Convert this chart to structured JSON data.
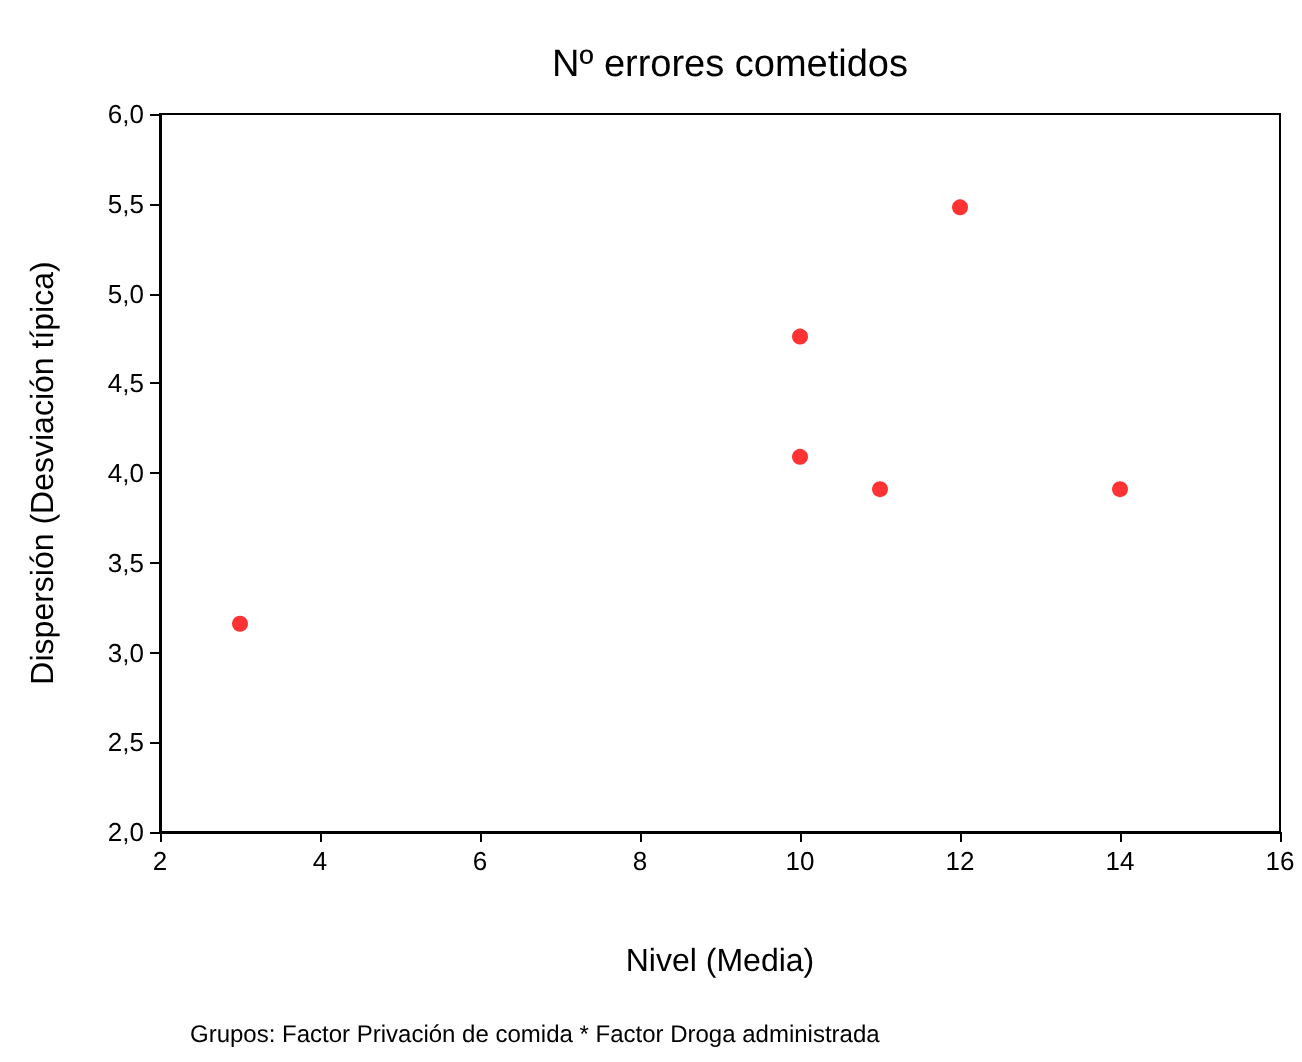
{
  "chart_data": {
    "type": "scatter",
    "title": "Nº errores cometidos",
    "xlabel": "Nivel (Media)",
    "ylabel": "Dispersión (Desviación típica)",
    "annotations": [
      "Grupos: Factor Privación de comida * Factor Droga administrada"
    ],
    "x": [
      3,
      10,
      10,
      11,
      12,
      14
    ],
    "values": [
      3.16,
      4.76,
      4.09,
      3.91,
      5.48,
      3.91
    ],
    "color": "#ff0000",
    "marker": "circle",
    "grid": false,
    "xlim": [
      2,
      16
    ],
    "xticks": [
      2,
      4,
      6,
      8,
      10,
      12,
      14,
      16
    ],
    "ylim": [
      2,
      6
    ],
    "yticks": [
      {
        "value": 2,
        "label": "2,0"
      },
      {
        "value": 2.5,
        "label": "2,5"
      },
      {
        "value": 3,
        "label": "3,0"
      },
      {
        "value": 3.5,
        "label": "3,5"
      },
      {
        "value": 4,
        "label": "4,0"
      },
      {
        "value": 4.5,
        "label": "4,5"
      },
      {
        "value": 5,
        "label": "5,0"
      },
      {
        "value": 5.5,
        "label": "5,5"
      },
      {
        "value": 6,
        "label": "6,0"
      }
    ]
  }
}
